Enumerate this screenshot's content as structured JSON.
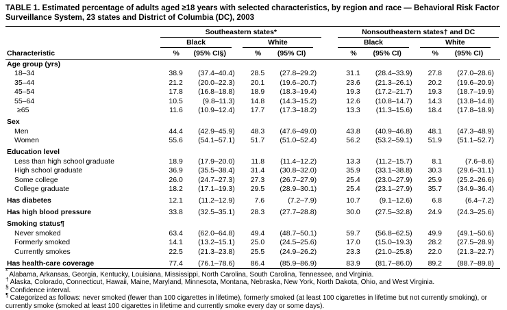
{
  "title": "TABLE 1. Estimated percentage of adults aged ≥18 years with selected characteristics, by region and race — Behavioral Risk Factor Surveillance System, 23 states and District of Columbia (DC), 2003",
  "header": {
    "characteristic": "Characteristic",
    "groups": [
      "Southeastern states*",
      "Nonsoutheastern states† and DC"
    ],
    "subgroups": [
      "Black",
      "White",
      "Black",
      "White"
    ],
    "col_headers": [
      "%",
      "(95% CI§)",
      "%",
      "(95% CI)",
      "%",
      "(95% CI)",
      "%",
      "(95% CI)"
    ]
  },
  "rows": [
    {
      "label": "Age group (yrs)",
      "bold": true,
      "values": []
    },
    {
      "label": "18–34",
      "indent": 1,
      "values": [
        "38.9",
        "(37.4–40.4)",
        "28.5",
        "(27.8–29.2)",
        "31.1",
        "(28.4–33.9)",
        "27.8",
        "(27.0–28.6)"
      ]
    },
    {
      "label": "35–44",
      "indent": 1,
      "values": [
        "21.2",
        "(20.0–22.3)",
        "20.1",
        "(19.6–20.7)",
        "23.6",
        "(21.3–26.1)",
        "20.2",
        "(19.6–20.9)"
      ]
    },
    {
      "label": "45–54",
      "indent": 1,
      "values": [
        "17.8",
        "(16.8–18.8)",
        "18.9",
        "(18.3–19.4)",
        "19.3",
        "(17.2–21.7)",
        "19.3",
        "(18.7–19.9)"
      ]
    },
    {
      "label": "55–64",
      "indent": 1,
      "values": [
        "10.5",
        "(9.8–11.3)",
        "14.8",
        "(14.3–15.2)",
        "12.6",
        "(10.8–14.7)",
        "14.3",
        "(13.8–14.8)"
      ]
    },
    {
      "label": "≥65",
      "indent": 2,
      "values": [
        "11.6",
        "(10.9–12.4)",
        "17.7",
        "(17.3–18.2)",
        "13.3",
        "(11.3–15.6)",
        "18.4",
        "(17.8–18.9)"
      ]
    },
    {
      "label": "Sex",
      "bold": true,
      "space": true,
      "values": []
    },
    {
      "label": "Men",
      "indent": 1,
      "values": [
        "44.4",
        "(42.9–45.9)",
        "48.3",
        "(47.6–49.0)",
        "43.8",
        "(40.9–46.8)",
        "48.1",
        "(47.3–48.9)"
      ]
    },
    {
      "label": "Women",
      "indent": 1,
      "values": [
        "55.6",
        "(54.1–57.1)",
        "51.7",
        "(51.0–52.4)",
        "56.2",
        "(53.2–59.1)",
        "51.9",
        "(51.1–52.7)"
      ]
    },
    {
      "label": "Education level",
      "bold": true,
      "space": true,
      "values": []
    },
    {
      "label": "Less than high school graduate",
      "indent": 1,
      "values": [
        "18.9",
        "(17.9–20.0)",
        "11.8",
        "(11.4–12.2)",
        "13.3",
        "(11.2–15.7)",
        "8.1",
        "(7.6–8.6)"
      ]
    },
    {
      "label": "High school graduate",
      "indent": 1,
      "values": [
        "36.9",
        "(35.5–38.4)",
        "31.4",
        "(30.8–32.0)",
        "35.9",
        "(33.1–38.8)",
        "30.3",
        "(29.6–31.1)"
      ]
    },
    {
      "label": "Some college",
      "indent": 1,
      "values": [
        "26.0",
        "(24.7–27.3)",
        "27.3",
        "(26.7–27.9)",
        "25.4",
        "(23.0–27.9)",
        "25.9",
        "(25.2–26.6)"
      ]
    },
    {
      "label": "College graduate",
      "indent": 1,
      "values": [
        "18.2",
        "(17.1–19.3)",
        "29.5",
        "(28.9–30.1)",
        "25.4",
        "(23.1–27.9)",
        "35.7",
        "(34.9–36.4)"
      ]
    },
    {
      "label": "Has diabetes",
      "bold": true,
      "space": true,
      "values": [
        "12.1",
        "(11.2–12.9)",
        "7.6",
        "(7.2–7.9)",
        "10.7",
        "(9.1–12.6)",
        "6.8",
        "(6.4–7.2)"
      ]
    },
    {
      "label": "Has high blood pressure",
      "bold": true,
      "space": true,
      "values": [
        "33.8",
        "(32.5–35.1)",
        "28.3",
        "(27.7–28.8)",
        "30.0",
        "(27.5–32.8)",
        "24.9",
        "(24.3–25.6)"
      ]
    },
    {
      "label": "Smoking status¶",
      "bold": true,
      "space": true,
      "values": []
    },
    {
      "label": "Never smoked",
      "indent": 1,
      "values": [
        "63.4",
        "(62.0–64.8)",
        "49.4",
        "(48.7–50.1)",
        "59.7",
        "(56.8–62.5)",
        "49.9",
        "(49.1–50.6)"
      ]
    },
    {
      "label": "Formerly smoked",
      "indent": 1,
      "values": [
        "14.1",
        "(13.2–15.1)",
        "25.0",
        "(24.5–25.6)",
        "17.0",
        "(15.0–19.3)",
        "28.2",
        "(27.5–28.9)"
      ]
    },
    {
      "label": "Currently smokes",
      "indent": 1,
      "values": [
        "22.5",
        "(21.3–23.8)",
        "25.5",
        "(24.9–26.2)",
        "23.3",
        "(21.0–25.8)",
        "22.0",
        "(21.3–22.7)"
      ]
    },
    {
      "label": "Has health-care coverage",
      "bold": true,
      "space": true,
      "values": [
        "77.4",
        "(76.1–78.6)",
        "86.4",
        "(85.9–86.9)",
        "83.9",
        "(81.7–86.0)",
        "89.2",
        "(88.7–89.8)"
      ]
    }
  ],
  "footnotes": [
    {
      "marker": "*",
      "text": "Alabama, Arkansas, Georgia, Kentucky, Louisiana, Mississippi, North Carolina, South Carolina, Tennessee, and Virginia."
    },
    {
      "marker": "†",
      "text": "Alaska, Colorado, Connecticut, Hawaii, Maine, Maryland, Minnesota, Montana, Nebraska, New York, North Dakota, Ohio, and West Virginia."
    },
    {
      "marker": "§",
      "text": "Confidence interval."
    },
    {
      "marker": "¶",
      "text": "Categorized as follows: never smoked (fewer than 100 cigarettes in lifetime), formerly smoked (at least 100 cigarettes in lifetime but not currently smoking), or currently smoke (smoked at least 100 cigarettes in lifetime and currently smoke every day or some days)."
    }
  ]
}
